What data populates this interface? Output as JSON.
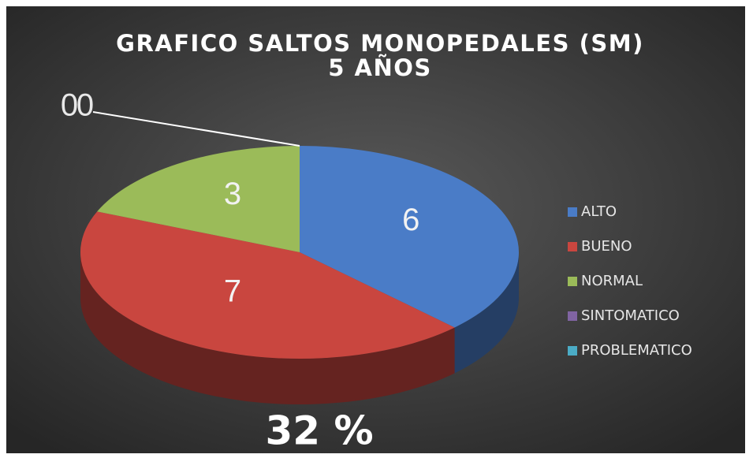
{
  "chart_data": {
    "type": "pie3d",
    "title": [
      "GRAFICO SALTOS MONOPEDALES (SM)",
      "5 AÑOS"
    ],
    "categories": [
      "ALTO",
      "BUENO",
      "NORMAL",
      "SINTOMATICO",
      "PROBLEMATICO"
    ],
    "values": [
      6,
      7,
      3,
      0,
      0
    ],
    "colors": [
      "#4a7cc7",
      "#c9463f",
      "#9bbb59",
      "#8064a2",
      "#4bacc6"
    ],
    "annotation": "32 %",
    "legend": "right"
  }
}
